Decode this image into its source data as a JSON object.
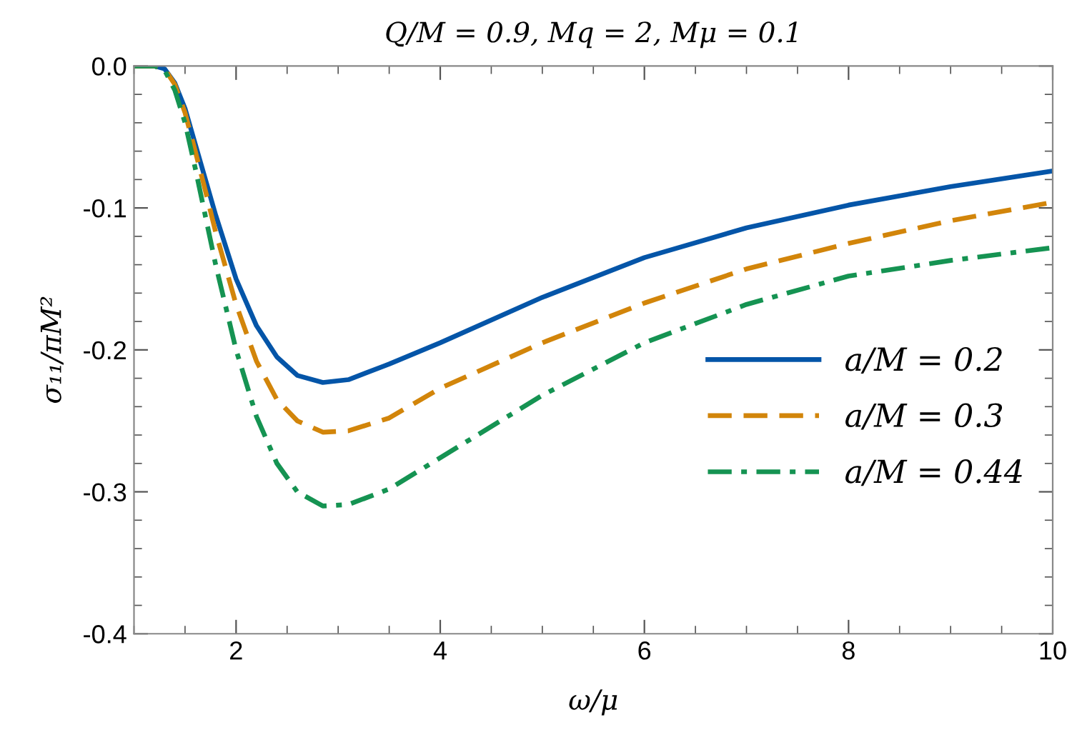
{
  "chart_data": {
    "type": "line",
    "title": "Q/M = 0.9, Mq = 2, Mμ = 0.1",
    "xlabel": "ω/μ",
    "ylabel": "σ₁₁/πM²",
    "xlim": [
      1,
      10
    ],
    "xticks": [
      {
        "value": 2,
        "label": "2"
      },
      {
        "value": 4,
        "label": "4"
      },
      {
        "value": 6,
        "label": "6"
      },
      {
        "value": 8,
        "label": "8"
      },
      {
        "value": 10,
        "label": "10"
      }
    ],
    "ylim": [
      -0.4,
      0
    ],
    "yticks": [
      {
        "value": -0.4,
        "label": "-0.4"
      },
      {
        "value": -0.3,
        "label": "-0.3"
      },
      {
        "value": -0.2,
        "label": "-0.2"
      },
      {
        "value": -0.1,
        "label": "-0.1"
      },
      {
        "value": 0,
        "label": "0.0"
      }
    ],
    "x": [
      1,
      1.2,
      1.3,
      1.4,
      1.5,
      1.6,
      1.7,
      1.8,
      2.0,
      2.2,
      2.4,
      2.6,
      2.85,
      3.1,
      3.5,
      4,
      5,
      6,
      7,
      8,
      9,
      10
    ],
    "grid": false,
    "legend": "right",
    "marker": "none",
    "series": [
      {
        "name": "a/M = 0.2",
        "color": "#0455a8",
        "line_style": "solid",
        "values": [
          0,
          0,
          -0.002,
          -0.012,
          -0.03,
          -0.055,
          -0.08,
          -0.105,
          -0.15,
          -0.183,
          -0.205,
          -0.218,
          -0.223,
          -0.221,
          -0.21,
          -0.195,
          -0.163,
          -0.135,
          -0.114,
          -0.098,
          -0.085,
          -0.074
        ]
      },
      {
        "name": "a/M = 0.3",
        "color": "#d2850a",
        "line_style": "dashed",
        "values": [
          0,
          0,
          -0.002,
          -0.013,
          -0.033,
          -0.06,
          -0.088,
          -0.117,
          -0.168,
          -0.208,
          -0.235,
          -0.25,
          -0.258,
          -0.257,
          -0.248,
          -0.227,
          -0.195,
          -0.167,
          -0.143,
          -0.125,
          -0.109,
          -0.096
        ]
      },
      {
        "name": "a/M = 0.44",
        "color": "#159352",
        "line_style": "dashdot",
        "values": [
          0,
          0,
          -0.003,
          -0.017,
          -0.04,
          -0.072,
          -0.106,
          -0.14,
          -0.2,
          -0.247,
          -0.28,
          -0.3,
          -0.31,
          -0.309,
          -0.298,
          -0.276,
          -0.232,
          -0.195,
          -0.168,
          -0.148,
          -0.137,
          -0.128
        ]
      }
    ]
  }
}
